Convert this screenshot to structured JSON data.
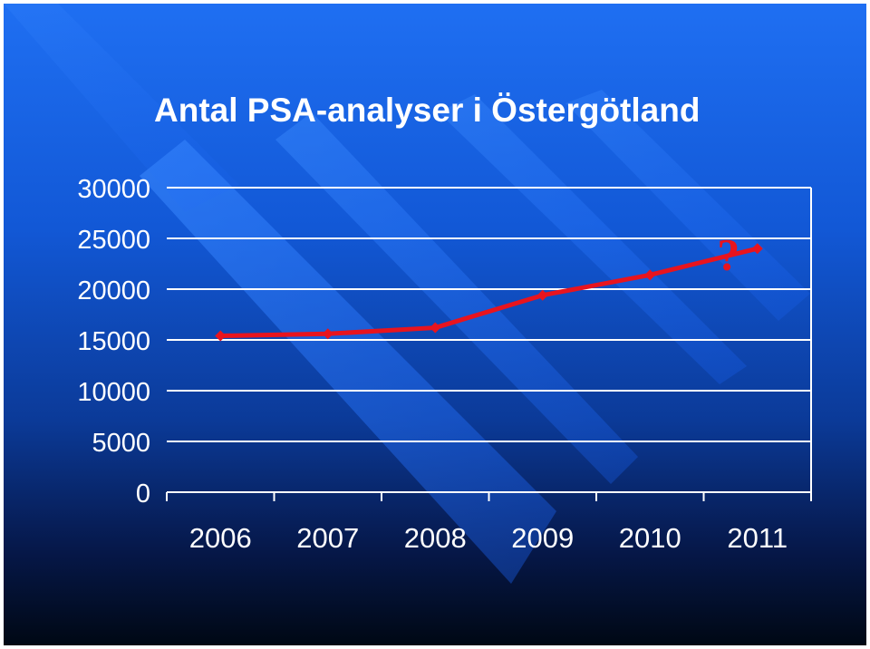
{
  "chart_data": {
    "type": "line",
    "title": "Antal PSA-analyser i Östergötland",
    "xlabel": "",
    "ylabel": "",
    "categories": [
      "2006",
      "2007",
      "2008",
      "2009",
      "2010",
      "2011"
    ],
    "yticks": [
      "0",
      "5000",
      "10000",
      "15000",
      "20000",
      "25000",
      "30000"
    ],
    "ylim": [
      0,
      30000
    ],
    "grid": true,
    "legend": "none",
    "series": [
      {
        "values": [
          15400,
          15600,
          16200,
          19400,
          21400,
          24000
        ],
        "color": "#e8141e"
      }
    ],
    "annotations": [
      {
        "text": "?",
        "x": "2011",
        "y": 23000,
        "color": "#e8141e"
      }
    ]
  }
}
